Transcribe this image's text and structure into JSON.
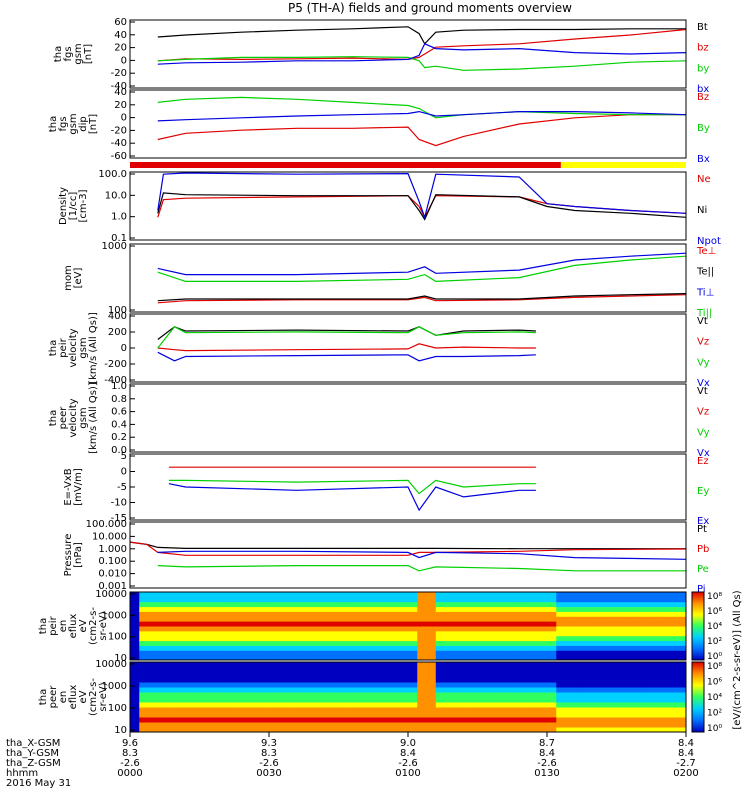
{
  "title": "P5 (TH-A) fields and ground moments overview",
  "date_label": "2016 May 31",
  "colors": {
    "black": "#000000",
    "red": "#e00000",
    "green": "#00d000",
    "blue": "#0000e0",
    "yellow": "#ffff00"
  },
  "chart_data": [
    {
      "type": "line",
      "ylabel": [
        "tha",
        "fgs",
        "gsm",
        "[nT]"
      ],
      "ylim": [
        -40,
        60
      ],
      "yticks": [
        "60",
        "40",
        "20",
        "0",
        "-20",
        "-40"
      ],
      "series": [
        {
          "name": "Bt",
          "color": "black",
          "x": [
            0.05,
            0.1,
            0.2,
            0.3,
            0.4,
            0.5,
            0.52,
            0.53,
            0.55,
            0.6,
            0.7,
            0.8,
            0.9,
            1.0
          ],
          "y": [
            35,
            38,
            42,
            45,
            47,
            50,
            40,
            25,
            42,
            45,
            46,
            46,
            47,
            47
          ]
        },
        {
          "name": "bz",
          "color": "red",
          "x": [
            0.05,
            0.1,
            0.2,
            0.3,
            0.4,
            0.5,
            0.52,
            0.53,
            0.55,
            0.6,
            0.7,
            0.8,
            0.9,
            1.0
          ],
          "y": [
            0,
            3,
            2,
            3,
            4,
            2,
            5,
            10,
            20,
            22,
            25,
            32,
            38,
            46
          ]
        },
        {
          "name": "by",
          "color": "green",
          "x": [
            0.05,
            0.1,
            0.2,
            0.3,
            0.4,
            0.5,
            0.52,
            0.53,
            0.55,
            0.6,
            0.7,
            0.8,
            0.9,
            1.0
          ],
          "y": [
            0,
            2,
            5,
            5,
            6,
            5,
            0,
            -10,
            -8,
            -14,
            -12,
            -8,
            -2,
            0
          ]
        },
        {
          "name": "bx",
          "color": "blue",
          "x": [
            0.05,
            0.1,
            0.2,
            0.3,
            0.4,
            0.5,
            0.52,
            0.53,
            0.55,
            0.6,
            0.7,
            0.8,
            0.9,
            1.0
          ],
          "y": [
            -5,
            -3,
            -2,
            0,
            0,
            2,
            8,
            25,
            18,
            16,
            18,
            12,
            10,
            12
          ]
        }
      ]
    },
    {
      "type": "line",
      "ylabel": [
        "tha",
        "fgs",
        "gsm",
        "dip",
        "[nT]"
      ],
      "ylim": [
        -70,
        40
      ],
      "yticks": [
        "40",
        "20",
        "0",
        "-20",
        "-40",
        "-60"
      ],
      "series": [
        {
          "name": "Bz",
          "color": "red",
          "x": [
            0.05,
            0.1,
            0.2,
            0.3,
            0.4,
            0.5,
            0.52,
            0.55,
            0.6,
            0.7,
            0.8,
            0.9,
            1.0
          ],
          "y": [
            -40,
            -30,
            -25,
            -22,
            -22,
            -20,
            -40,
            -50,
            -35,
            -15,
            -5,
            0,
            0
          ]
        },
        {
          "name": "By",
          "color": "green",
          "x": [
            0.05,
            0.1,
            0.2,
            0.3,
            0.4,
            0.5,
            0.52,
            0.55,
            0.6,
            0.7,
            0.8,
            0.9,
            1.0
          ],
          "y": [
            20,
            25,
            28,
            25,
            20,
            15,
            10,
            -5,
            0,
            5,
            2,
            0,
            0
          ]
        },
        {
          "name": "Bx",
          "color": "blue",
          "x": [
            0.05,
            0.1,
            0.2,
            0.3,
            0.4,
            0.5,
            0.52,
            0.55,
            0.6,
            0.7,
            0.8,
            0.9,
            1.0
          ],
          "y": [
            -10,
            -8,
            -5,
            -2,
            0,
            2,
            5,
            -2,
            0,
            5,
            5,
            3,
            0
          ]
        }
      ]
    },
    {
      "type": "line",
      "log": true,
      "ylabel": [
        "Density",
        "[1/cc]",
        "[cm-3]"
      ],
      "ylim": [
        0.1,
        100
      ],
      "yticks": [
        "100.0",
        "10.0",
        "1.0",
        "0.1"
      ],
      "series": [
        {
          "name": "Ne",
          "color": "red",
          "x": [
            0.05,
            0.06,
            0.1,
            0.3,
            0.5,
            0.52,
            0.53,
            0.55,
            0.7,
            0.75,
            0.8,
            0.9,
            1.0
          ],
          "y": [
            1,
            6,
            7,
            8,
            9,
            3,
            1,
            9,
            8,
            4,
            3,
            2,
            1.5
          ]
        },
        {
          "name": "Ni",
          "color": "black",
          "x": [
            0.05,
            0.06,
            0.1,
            0.3,
            0.5,
            0.52,
            0.53,
            0.55,
            0.7,
            0.75,
            0.8,
            0.9,
            1.0
          ],
          "y": [
            1.5,
            12,
            10,
            9,
            9,
            2,
            0.8,
            10,
            8,
            3,
            2,
            1.5,
            1
          ]
        },
        {
          "name": "Npot",
          "color": "blue",
          "x": [
            0.05,
            0.06,
            0.1,
            0.3,
            0.5,
            0.52,
            0.53,
            0.55,
            0.7,
            0.75,
            0.8,
            0.9,
            1.0
          ],
          "y": [
            2,
            80,
            90,
            80,
            85,
            5,
            1,
            80,
            60,
            4,
            3,
            2,
            1.5
          ]
        }
      ]
    },
    {
      "type": "line",
      "log": true,
      "ylabel": [
        "mom",
        "[eV]"
      ],
      "ylim": [
        30,
        5000
      ],
      "yticks": [
        "1000",
        "100"
      ],
      "series": [
        {
          "name": "Te⊥",
          "color": "red",
          "x": [
            0.05,
            0.1,
            0.3,
            0.5,
            0.53,
            0.55,
            0.7,
            0.8,
            0.9,
            1.0
          ],
          "y": [
            60,
            70,
            75,
            75,
            90,
            70,
            75,
            90,
            100,
            110
          ]
        },
        {
          "name": "Te||",
          "color": "black",
          "x": [
            0.05,
            0.1,
            0.3,
            0.5,
            0.53,
            0.55,
            0.7,
            0.8,
            0.9,
            1.0
          ],
          "y": [
            70,
            80,
            80,
            80,
            100,
            80,
            80,
            100,
            110,
            120
          ]
        },
        {
          "name": "Ti⊥",
          "color": "blue",
          "x": [
            0.05,
            0.1,
            0.3,
            0.5,
            0.53,
            0.55,
            0.7,
            0.8,
            0.9,
            1.0
          ],
          "y": [
            800,
            500,
            500,
            600,
            900,
            550,
            700,
            1500,
            2000,
            2500
          ]
        },
        {
          "name": "Ti||",
          "color": "green",
          "x": [
            0.05,
            0.1,
            0.3,
            0.5,
            0.53,
            0.55,
            0.7,
            0.8,
            0.9,
            1.0
          ],
          "y": [
            600,
            300,
            300,
            350,
            500,
            300,
            400,
            1000,
            1500,
            2000
          ]
        }
      ]
    },
    {
      "type": "line",
      "ylabel": [
        "tha",
        "peir",
        "velocity",
        "gsm",
        "[km/s (All Qs)]"
      ],
      "ylim": [
        -400,
        400
      ],
      "yticks": [
        "400",
        "200",
        "0",
        "-200",
        "-400"
      ],
      "series": [
        {
          "name": "Vt",
          "color": "black",
          "x": [
            0.05,
            0.08,
            0.1,
            0.3,
            0.5,
            0.52,
            0.55,
            0.6,
            0.7,
            0.73
          ],
          "y": [
            100,
            250,
            200,
            210,
            200,
            250,
            150,
            200,
            210,
            200
          ]
        },
        {
          "name": "Vz",
          "color": "red",
          "x": [
            0.05,
            0.08,
            0.1,
            0.3,
            0.5,
            0.52,
            0.55,
            0.6,
            0.7,
            0.73
          ],
          "y": [
            0,
            -20,
            -30,
            -20,
            -10,
            50,
            0,
            10,
            0,
            0
          ]
        },
        {
          "name": "Vy",
          "color": "green",
          "x": [
            0.05,
            0.08,
            0.1,
            0.3,
            0.5,
            0.52,
            0.55,
            0.6,
            0.7,
            0.73
          ],
          "y": [
            0,
            250,
            180,
            190,
            180,
            250,
            150,
            180,
            190,
            180
          ]
        },
        {
          "name": "Vx",
          "color": "blue",
          "x": [
            0.05,
            0.08,
            0.1,
            0.3,
            0.5,
            0.52,
            0.55,
            0.6,
            0.7,
            0.73
          ],
          "y": [
            -50,
            -150,
            -100,
            -90,
            -80,
            -150,
            -100,
            -100,
            -90,
            -80
          ]
        }
      ]
    },
    {
      "type": "line",
      "ylabel": [
        "tha",
        "peer",
        "velocity",
        "gsm",
        "[km/s (All Qs)]"
      ],
      "ylim": [
        0,
        1
      ],
      "yticks": [
        "1.0",
        "0.8",
        "0.6",
        "0.4",
        "0.2",
        "0.0"
      ],
      "series": [
        {
          "name": "Vt",
          "color": "black",
          "x": [],
          "y": []
        },
        {
          "name": "Vz",
          "color": "red",
          "x": [],
          "y": []
        },
        {
          "name": "Vy",
          "color": "green",
          "x": [],
          "y": []
        },
        {
          "name": "Vx",
          "color": "blue",
          "x": [],
          "y": []
        }
      ]
    },
    {
      "type": "line",
      "ylabel": [
        "E=-VxB",
        "[mV/m]"
      ],
      "ylim": [
        -15,
        5
      ],
      "yticks": [
        "5",
        "0",
        "-5",
        "-10",
        "-15"
      ],
      "series": [
        {
          "name": "Ez",
          "color": "red",
          "x": [
            0.07,
            0.1,
            0.3,
            0.5,
            0.52,
            0.55,
            0.6,
            0.7,
            0.73
          ],
          "y": [
            1,
            1,
            1,
            1,
            1,
            1,
            1,
            1,
            1
          ]
        },
        {
          "name": "Ey",
          "color": "green",
          "x": [
            0.07,
            0.1,
            0.3,
            0.5,
            0.52,
            0.55,
            0.6,
            0.7,
            0.73
          ],
          "y": [
            -3,
            -3,
            -3.5,
            -3,
            -7,
            -3,
            -5,
            -4,
            -4
          ]
        },
        {
          "name": "Ex",
          "color": "blue",
          "x": [
            0.07,
            0.1,
            0.3,
            0.5,
            0.52,
            0.55,
            0.6,
            0.7,
            0.73
          ],
          "y": [
            -4,
            -5,
            -6,
            -5,
            -12,
            -5,
            -8,
            -6,
            -6
          ]
        }
      ]
    },
    {
      "type": "line",
      "log": true,
      "ylabel": [
        "Pressure",
        "[nPa]"
      ],
      "ylim": [
        0.001,
        100
      ],
      "yticks": [
        "100.000",
        "10.000",
        "1.000",
        "0.100",
        "0.010",
        "0.001"
      ],
      "series": [
        {
          "name": "Pt",
          "color": "black",
          "x": [
            0.0,
            0.03,
            0.05,
            0.1,
            0.3,
            0.5,
            0.52,
            0.55,
            0.7,
            0.8,
            1.0
          ],
          "y": [
            3,
            2,
            1.2,
            1,
            1,
            1,
            1,
            1,
            0.95,
            0.95,
            0.95
          ]
        },
        {
          "name": "Pb",
          "color": "red",
          "x": [
            0.0,
            0.03,
            0.05,
            0.1,
            0.3,
            0.5,
            0.52,
            0.55,
            0.7,
            0.8,
            1.0
          ],
          "y": [
            3,
            2,
            0.5,
            0.3,
            0.3,
            0.3,
            0.5,
            0.5,
            0.6,
            0.8,
            0.9
          ]
        },
        {
          "name": "Pe",
          "color": "green",
          "x": [
            0.05,
            0.1,
            0.3,
            0.5,
            0.52,
            0.55,
            0.7,
            0.8,
            1.0
          ],
          "y": [
            0.05,
            0.04,
            0.05,
            0.05,
            0.02,
            0.04,
            0.03,
            0.02,
            0.02
          ]
        },
        {
          "name": "Pi",
          "color": "blue",
          "x": [
            0.05,
            0.1,
            0.3,
            0.5,
            0.52,
            0.55,
            0.7,
            0.8,
            1.0
          ],
          "y": [
            0.5,
            0.6,
            0.6,
            0.5,
            0.2,
            0.5,
            0.4,
            0.2,
            0.15
          ]
        }
      ]
    },
    {
      "type": "heatmap",
      "ylabel": [
        "tha",
        "peir",
        "en",
        "eflux",
        "eV",
        "(cm2-s-",
        "sr-eV)"
      ],
      "log": true,
      "ylim": [
        5,
        20000
      ],
      "yticks": [
        "10000",
        "1000",
        "100",
        "10"
      ]
    },
    {
      "type": "heatmap",
      "ylabel": [
        "tha",
        "peer",
        "en",
        "eflux",
        "eV",
        "(cm2-s-",
        "sr-eV)"
      ],
      "log": true,
      "ylim": [
        5,
        20000
      ],
      "yticks": [
        "10000",
        "1000",
        "100",
        "10"
      ]
    }
  ],
  "colorbar": {
    "label": "[eV/(cm^2-s-sr-eV)] (All Qs)",
    "ticks1": [
      "10⁸",
      "10⁶",
      "10⁴",
      "10²",
      "10⁰"
    ],
    "ticks2": [
      "10⁸",
      "10⁶",
      "10⁴",
      "10²",
      "10⁰"
    ]
  },
  "x_axis": {
    "row_labels": [
      "tha_X-GSM",
      "tha_Y-GSM",
      "tha_Z-GSM",
      "hhmm",
      "2016 May 31"
    ],
    "ticks": [
      {
        "x": "9.6",
        "y": "8.3",
        "z": "-2.6",
        "t": "0000"
      },
      {
        "x": "9.3",
        "y": "8.3",
        "z": "-2.6",
        "t": "0030"
      },
      {
        "x": "9.0",
        "y": "8.4",
        "z": "-2.6",
        "t": "0100"
      },
      {
        "x": "8.7",
        "y": "8.4",
        "z": "-2.6",
        "t": "0130"
      },
      {
        "x": "8.4",
        "y": "8.4",
        "z": "-2.7",
        "t": "0200"
      }
    ]
  },
  "mode_bar": {
    "red_until": 0.775,
    "colors": [
      "red",
      "yellow"
    ]
  }
}
